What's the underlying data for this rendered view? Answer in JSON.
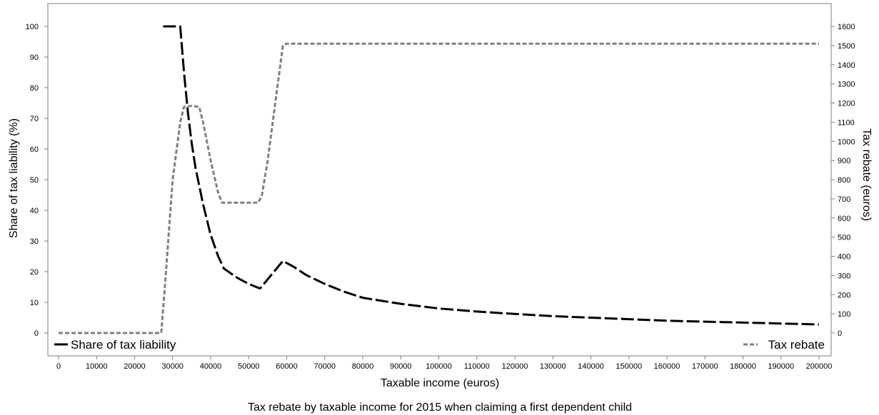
{
  "chart_data": {
    "type": "line",
    "caption": "Tax rebate by taxable income for 2015 when claiming a first dependent child",
    "xlabel": "Taxable income (euros)",
    "ylabel_left": "Share of tax liability (%)",
    "ylabel_right": "Tax rebate (euros)",
    "xlim": [
      0,
      200000
    ],
    "ylim_left": [
      0,
      100
    ],
    "ylim_right": [
      0,
      1600
    ],
    "x_ticks": [
      0,
      10000,
      20000,
      30000,
      40000,
      50000,
      60000,
      70000,
      80000,
      90000,
      100000,
      110000,
      120000,
      130000,
      140000,
      150000,
      160000,
      170000,
      180000,
      190000,
      200000
    ],
    "y_left_ticks": [
      0,
      10,
      20,
      30,
      40,
      50,
      60,
      70,
      80,
      90,
      100
    ],
    "y_right_ticks": [
      0,
      100,
      200,
      300,
      400,
      500,
      600,
      700,
      800,
      900,
      1000,
      1100,
      1200,
      1300,
      1400,
      1500,
      1600
    ],
    "grid": false,
    "series": [
      {
        "name": "Share of tax liability",
        "axis": "left",
        "color": "#000000",
        "dash": "long-dash",
        "x": [
          27500,
          32000,
          33000,
          34000,
          35000,
          36000,
          38000,
          40000,
          42000,
          43500,
          47000,
          50000,
          53000,
          56000,
          59000,
          62000,
          65000,
          70000,
          75000,
          80000,
          90000,
          100000,
          110000,
          120000,
          130000,
          140000,
          150000,
          160000,
          170000,
          180000,
          190000,
          200000
        ],
        "y": [
          100,
          100,
          85,
          72,
          62,
          54,
          42,
          32,
          25,
          21,
          18,
          16,
          14.5,
          19,
          23.5,
          21.5,
          19,
          16,
          13.5,
          11.5,
          9.5,
          8,
          7,
          6.2,
          5.5,
          5,
          4.5,
          4,
          3.7,
          3.4,
          3.1,
          2.8
        ]
      },
      {
        "name": "Tax rebate",
        "axis": "right",
        "color": "#808080",
        "dash": "short-dash",
        "x": [
          0,
          27000,
          28000,
          30000,
          32000,
          33000,
          35000,
          37000,
          38000,
          40000,
          42000,
          43000,
          52500,
          53500,
          55000,
          57000,
          59000,
          60000,
          80000,
          100000,
          120000,
          140000,
          160000,
          180000,
          200000
        ],
        "y": [
          0,
          0,
          250,
          800,
          1100,
          1180,
          1185,
          1180,
          1100,
          900,
          730,
          680,
          680,
          720,
          900,
          1200,
          1500,
          1510,
          1510,
          1510,
          1510,
          1510,
          1510,
          1510,
          1510
        ]
      }
    ],
    "legend": [
      {
        "name": "Share of tax liability",
        "placement": "bottom-left"
      },
      {
        "name": "Tax rebate",
        "placement": "bottom-right"
      }
    ]
  }
}
